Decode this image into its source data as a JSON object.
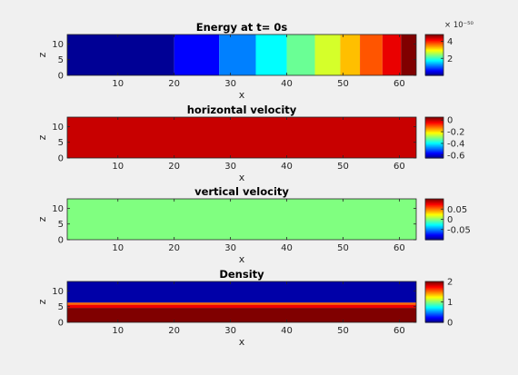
{
  "figure": {
    "background": "#f0f0f0"
  },
  "chart_data": [
    {
      "type": "heatmap",
      "title": "Energy at t= 0s",
      "xlabel": "x",
      "ylabel": "z",
      "xlim": [
        1,
        63
      ],
      "ylim": [
        0,
        13
      ],
      "xticks": [
        "10",
        "20",
        "30",
        "40",
        "50",
        "60"
      ],
      "xtick_values": [
        10,
        20,
        30,
        40,
        50,
        60
      ],
      "yticks": [
        "0",
        "5",
        "10"
      ],
      "ytick_values": [
        0,
        5,
        10
      ],
      "colorbar": {
        "colormap": "jet",
        "range": [
          0,
          4.8
        ],
        "ticks": [
          "2",
          "4"
        ],
        "tick_values": [
          2,
          4
        ],
        "exponent": "× 10⁻⁵⁰"
      },
      "orientation": "columns",
      "bands": [
        {
          "from": 1,
          "to": 20,
          "value": 0.1
        },
        {
          "from": 20,
          "to": 28,
          "value": 0.6
        },
        {
          "from": 28,
          "to": 34.5,
          "value": 1.2
        },
        {
          "from": 34.5,
          "to": 40,
          "value": 1.8
        },
        {
          "from": 40,
          "to": 45,
          "value": 2.3
        },
        {
          "from": 45,
          "to": 49.5,
          "value": 2.8
        },
        {
          "from": 49.5,
          "to": 53,
          "value": 3.3
        },
        {
          "from": 53,
          "to": 57,
          "value": 3.8
        },
        {
          "from": 57,
          "to": 60.3,
          "value": 4.3
        },
        {
          "from": 60.3,
          "to": 63,
          "value": 4.8
        }
      ]
    },
    {
      "type": "heatmap",
      "title": "horizontal velocity",
      "xlabel": "x",
      "ylabel": "z",
      "xlim": [
        1,
        63
      ],
      "ylim": [
        0,
        13
      ],
      "xticks": [
        "10",
        "20",
        "30",
        "40",
        "50",
        "60"
      ],
      "xtick_values": [
        10,
        20,
        30,
        40,
        50,
        60
      ],
      "yticks": [
        "0",
        "5",
        "10"
      ],
      "ytick_values": [
        0,
        5,
        10
      ],
      "colorbar": {
        "colormap": "jet",
        "range": [
          -0.65,
          0.05
        ],
        "ticks": [
          "0",
          "-0.2",
          "-0.4",
          "-0.6"
        ],
        "tick_values": [
          0,
          -0.2,
          -0.4,
          -0.6
        ]
      },
      "orientation": "columns",
      "bands": [
        {
          "from": 1,
          "to": 63,
          "value": 0.0
        }
      ]
    },
    {
      "type": "heatmap",
      "title": "vertical velocity",
      "xlabel": "x",
      "ylabel": "z",
      "xlim": [
        1,
        63
      ],
      "ylim": [
        0,
        13
      ],
      "xticks": [
        "10",
        "20",
        "30",
        "40",
        "50",
        "60"
      ],
      "xtick_values": [
        10,
        20,
        30,
        40,
        50,
        60
      ],
      "yticks": [
        "0",
        "5",
        "10"
      ],
      "ytick_values": [
        0,
        5,
        10
      ],
      "colorbar": {
        "colormap": "jet",
        "range": [
          -0.1,
          0.1
        ],
        "ticks": [
          "0.05",
          "0",
          "-0.05"
        ],
        "tick_values": [
          0.05,
          0,
          -0.05
        ]
      },
      "orientation": "columns",
      "bands": [
        {
          "from": 1,
          "to": 63,
          "value": 0.0
        }
      ]
    },
    {
      "type": "heatmap",
      "title": "Density",
      "xlabel": "x",
      "ylabel": "z",
      "xlim": [
        1,
        63
      ],
      "ylim": [
        0,
        13
      ],
      "xticks": [
        "10",
        "20",
        "30",
        "40",
        "50",
        "60"
      ],
      "xtick_values": [
        10,
        20,
        30,
        40,
        50,
        60
      ],
      "yticks": [
        "0",
        "5",
        "10"
      ],
      "ytick_values": [
        0,
        5,
        10
      ],
      "colorbar": {
        "colormap": "jet",
        "range": [
          0,
          2
        ],
        "ticks": [
          "2",
          "1",
          "0"
        ],
        "tick_values": [
          2,
          1,
          0
        ]
      },
      "orientation": "rows",
      "bands": [
        {
          "from": 0,
          "to": 4.6,
          "value": 2.0
        },
        {
          "from": 4.6,
          "to": 5.6,
          "value": 1.78
        },
        {
          "from": 5.6,
          "to": 6.3,
          "value": 1.55
        },
        {
          "from": 6.3,
          "to": 13,
          "value": 0.08
        }
      ]
    }
  ]
}
